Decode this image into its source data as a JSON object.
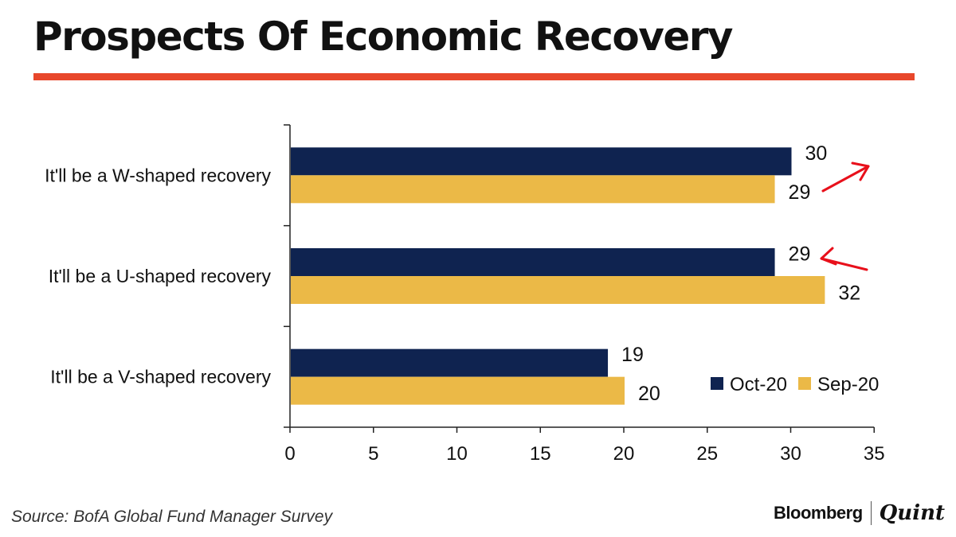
{
  "title": "Prospects Of Economic Recovery",
  "accent_color": "#e8472b",
  "source": "Source: BofA Global Fund Manager Survey",
  "brand": {
    "name": "Bloomberg",
    "name2": "Quint"
  },
  "chart_data": {
    "type": "bar",
    "orientation": "horizontal",
    "title": "",
    "categories": [
      "It'll be a W-shaped recovery",
      "It'll be a U-shaped recovery",
      "It'll be a V-shaped recovery"
    ],
    "series": [
      {
        "name": "Oct-20",
        "color": "#0f2350",
        "values": [
          30,
          29,
          19
        ]
      },
      {
        "name": "Sep-20",
        "color": "#ebb947",
        "values": [
          29,
          32,
          20
        ]
      }
    ],
    "xlim": [
      0,
      35
    ],
    "xticks": [
      0,
      5,
      10,
      15,
      20,
      25,
      30,
      35
    ],
    "xlabel": "",
    "ylabel": "",
    "grid": false,
    "legend": "bottom-right",
    "annotations": [
      {
        "type": "arrow",
        "direction": "up",
        "category": "It'll be a W-shaped recovery",
        "color": "#e8101b"
      },
      {
        "type": "arrow",
        "direction": "left",
        "category": "It'll be a U-shaped recovery",
        "color": "#e8101b"
      }
    ]
  }
}
